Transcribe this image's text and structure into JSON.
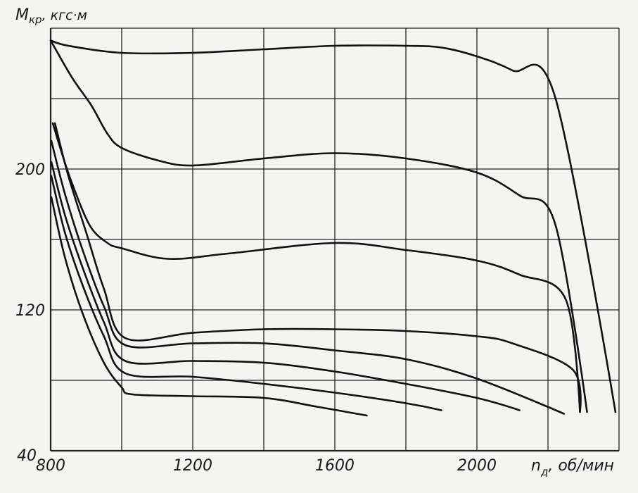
{
  "chart_data": {
    "type": "line",
    "title": "",
    "ylabel": "Мкр, кгс·м",
    "ylabel_main": "M",
    "ylabel_sub": "кр",
    "ylabel_units": ", кгс·м",
    "xlabel_main": "n",
    "xlabel_sub": "д",
    "xlabel_units": ", об/мин",
    "xlim": [
      800,
      2400
    ],
    "ylim": [
      40,
      280
    ],
    "grid": true,
    "x_gridlines": [
      800,
      1000,
      1200,
      1400,
      1600,
      1800,
      2000,
      2200,
      2400
    ],
    "y_gridlines": [
      40,
      80,
      120,
      160,
      200,
      240,
      280
    ],
    "x_ticks": [
      "800",
      "1200",
      "1600",
      "2000"
    ],
    "x_tick_values": [
      800,
      1200,
      1600,
      2000
    ],
    "y_ticks": [
      "40",
      "120",
      "200"
    ],
    "y_tick_values": [
      40,
      120,
      200
    ],
    "colors": {
      "line": "#111111",
      "grid": "#222222",
      "background": "#f4f4f2"
    },
    "series": [
      {
        "name": "curve-1",
        "points": [
          [
            800,
            273
          ],
          [
            850,
            270
          ],
          [
            1000,
            266
          ],
          [
            1200,
            266
          ],
          [
            1400,
            268
          ],
          [
            1600,
            270
          ],
          [
            1800,
            270
          ],
          [
            1900,
            269
          ],
          [
            2000,
            264
          ],
          [
            2100,
            256
          ],
          [
            2220,
            241
          ],
          [
            2390,
            62
          ]
        ]
      },
      {
        "name": "curve-2",
        "points": [
          [
            800,
            273
          ],
          [
            860,
            252
          ],
          [
            915,
            236
          ],
          [
            960,
            220
          ],
          [
            1000,
            212
          ],
          [
            1100,
            205
          ],
          [
            1200,
            202
          ],
          [
            1400,
            206
          ],
          [
            1600,
            209
          ],
          [
            1800,
            206
          ],
          [
            2000,
            198
          ],
          [
            2120,
            185
          ],
          [
            2220,
            169
          ],
          [
            2310,
            62
          ]
        ]
      },
      {
        "name": "curve-3",
        "points": [
          [
            806,
            226
          ],
          [
            830,
            210
          ],
          [
            860,
            192
          ],
          [
            910,
            168
          ],
          [
            960,
            158
          ],
          [
            1000,
            155
          ],
          [
            1130,
            149
          ],
          [
            1300,
            152
          ],
          [
            1600,
            158
          ],
          [
            1800,
            154
          ],
          [
            2000,
            148
          ],
          [
            2120,
            140
          ],
          [
            2250,
            126
          ],
          [
            2290,
            62
          ]
        ]
      },
      {
        "name": "curve-4",
        "points": [
          [
            812,
            226
          ],
          [
            850,
            196
          ],
          [
            900,
            164
          ],
          [
            950,
            132
          ],
          [
            1010,
            104
          ],
          [
            1200,
            107
          ],
          [
            1400,
            109
          ],
          [
            1600,
            109
          ],
          [
            1800,
            108
          ],
          [
            2000,
            105
          ],
          [
            2100,
            101
          ],
          [
            2270,
            86
          ],
          [
            2290,
            62
          ]
        ]
      },
      {
        "name": "curve-5",
        "points": [
          [
            802,
            216
          ],
          [
            840,
            186
          ],
          [
            890,
            154
          ],
          [
            950,
            122
          ],
          [
            1010,
            100
          ],
          [
            1200,
            101
          ],
          [
            1400,
            101
          ],
          [
            1600,
            97
          ],
          [
            1800,
            92
          ],
          [
            2000,
            81
          ],
          [
            2245,
            61
          ]
        ]
      },
      {
        "name": "curve-6",
        "points": [
          [
            802,
            204
          ],
          [
            840,
            174
          ],
          [
            890,
            144
          ],
          [
            950,
            113
          ],
          [
            1010,
            91
          ],
          [
            1200,
            91
          ],
          [
            1400,
            90
          ],
          [
            1600,
            85
          ],
          [
            1800,
            78
          ],
          [
            2000,
            70
          ],
          [
            2120,
            63
          ]
        ]
      },
      {
        "name": "curve-7",
        "points": [
          [
            802,
            196
          ],
          [
            840,
            164
          ],
          [
            890,
            134
          ],
          [
            950,
            105
          ],
          [
            1010,
            84
          ],
          [
            1200,
            82
          ],
          [
            1400,
            78
          ],
          [
            1600,
            73
          ],
          [
            1800,
            67
          ],
          [
            1900,
            63
          ]
        ]
      },
      {
        "name": "curve-8",
        "points": [
          [
            802,
            184
          ],
          [
            840,
            150
          ],
          [
            890,
            118
          ],
          [
            950,
            90
          ],
          [
            1000,
            76
          ],
          [
            1030,
            72
          ],
          [
            1200,
            71
          ],
          [
            1400,
            70
          ],
          [
            1550,
            65
          ],
          [
            1690,
            60
          ]
        ]
      }
    ]
  }
}
